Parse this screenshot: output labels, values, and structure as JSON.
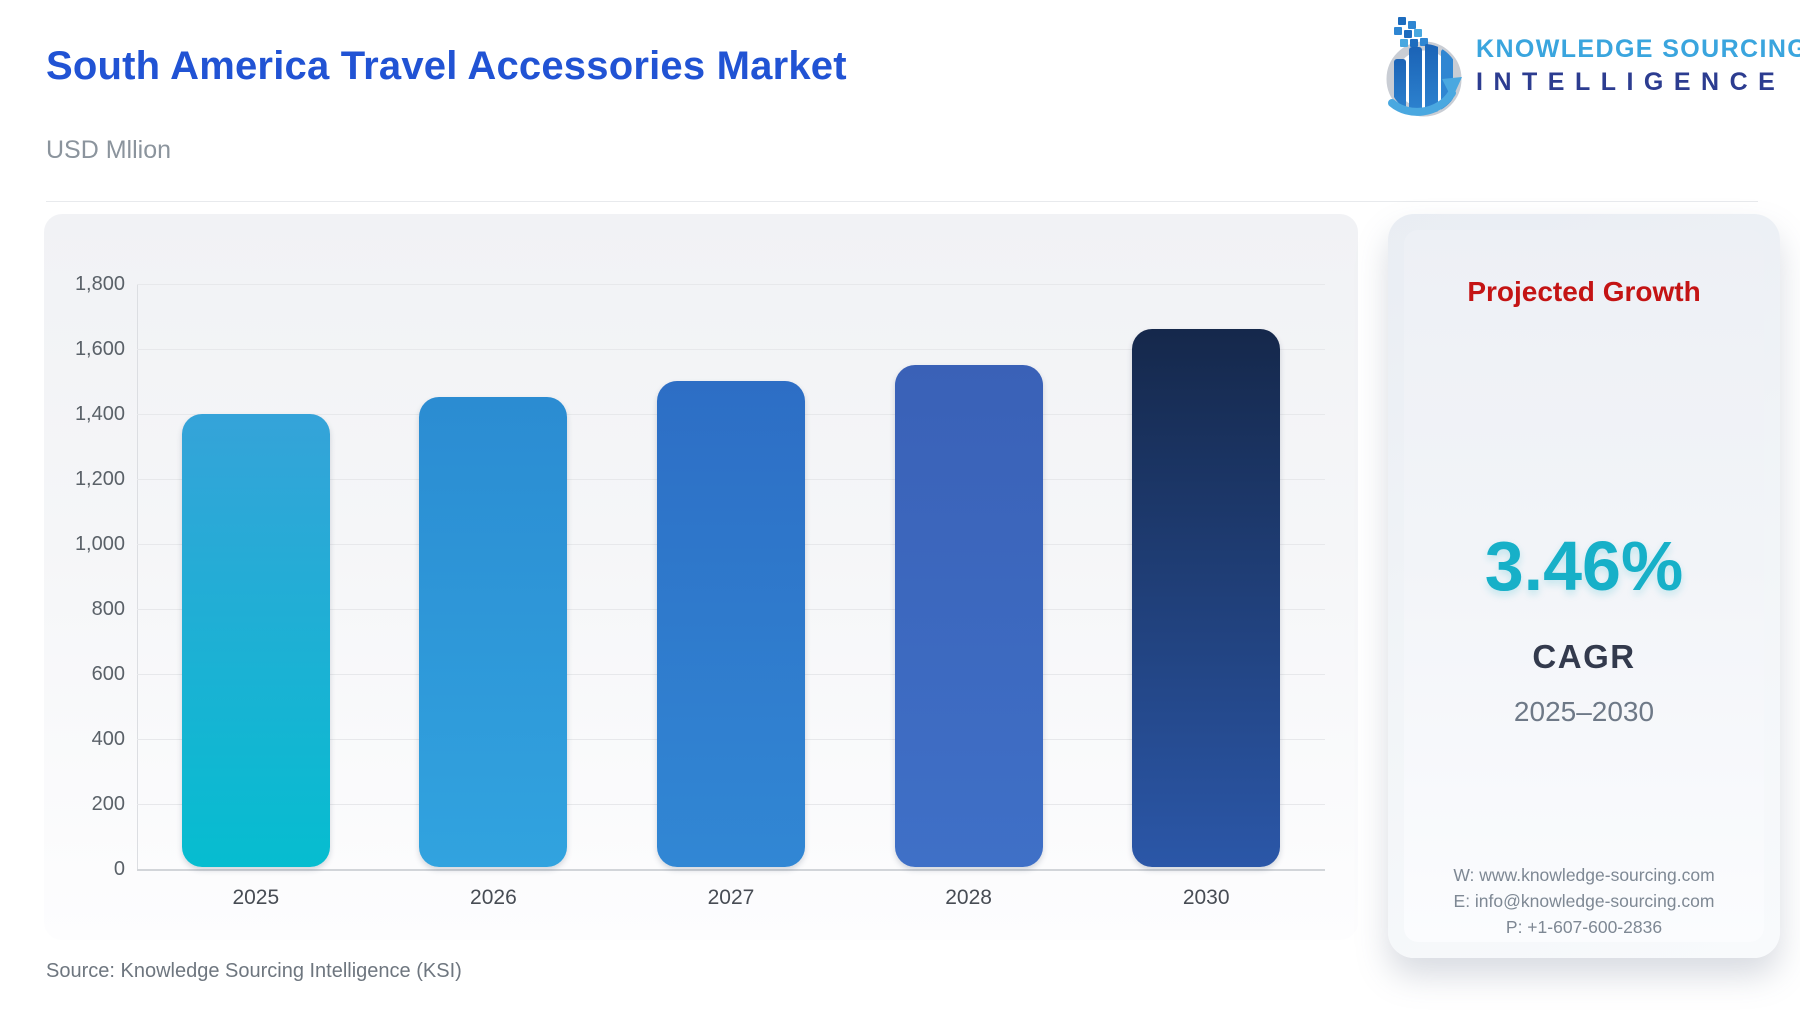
{
  "header": {
    "title": "South America Travel Accessories Market",
    "subtitle": "USD Mllion",
    "logo": {
      "line1": "KNOWLEDGE SOURCING",
      "line2": "INTELLIGENCE"
    }
  },
  "chart_data": {
    "type": "bar",
    "title": "South America Travel Accessories Market",
    "ylabel": "USD Mllion",
    "xlabel": "",
    "categories": [
      "2025",
      "2026",
      "2027",
      "2028",
      "2030"
    ],
    "values": [
      1395,
      1445,
      1495,
      1545,
      1655
    ],
    "ylim": [
      0,
      1800
    ],
    "ytick_interval": 200,
    "ytick_labels": [
      "0",
      "200",
      "400",
      "600",
      "800",
      "1,000",
      "1,200",
      "1,400",
      "1,600",
      "1,800"
    ],
    "grid": true,
    "legend": false,
    "bar_gradients": [
      [
        "#35a3d9",
        "#06bdd0"
      ],
      [
        "#2b8cd2",
        "#31a3df"
      ],
      [
        "#2d6ec5",
        "#3187d4"
      ],
      [
        "#3a61b7",
        "#3f70c7"
      ],
      [
        "#15284b",
        "#2b57a8"
      ]
    ]
  },
  "growth_panel": {
    "title": "Projected Growth",
    "value": "3.46%",
    "metric": "CAGR",
    "period": "2025–2030",
    "title_color": "#c41414",
    "value_color": "#17b0c8",
    "contact": {
      "website": "W: www.knowledge-sourcing.com",
      "email": "E: info@knowledge-sourcing.com",
      "phone": "P: +1-607-600-2836"
    }
  },
  "footer": {
    "source": "Source: Knowledge Sourcing Intelligence (KSI)"
  }
}
